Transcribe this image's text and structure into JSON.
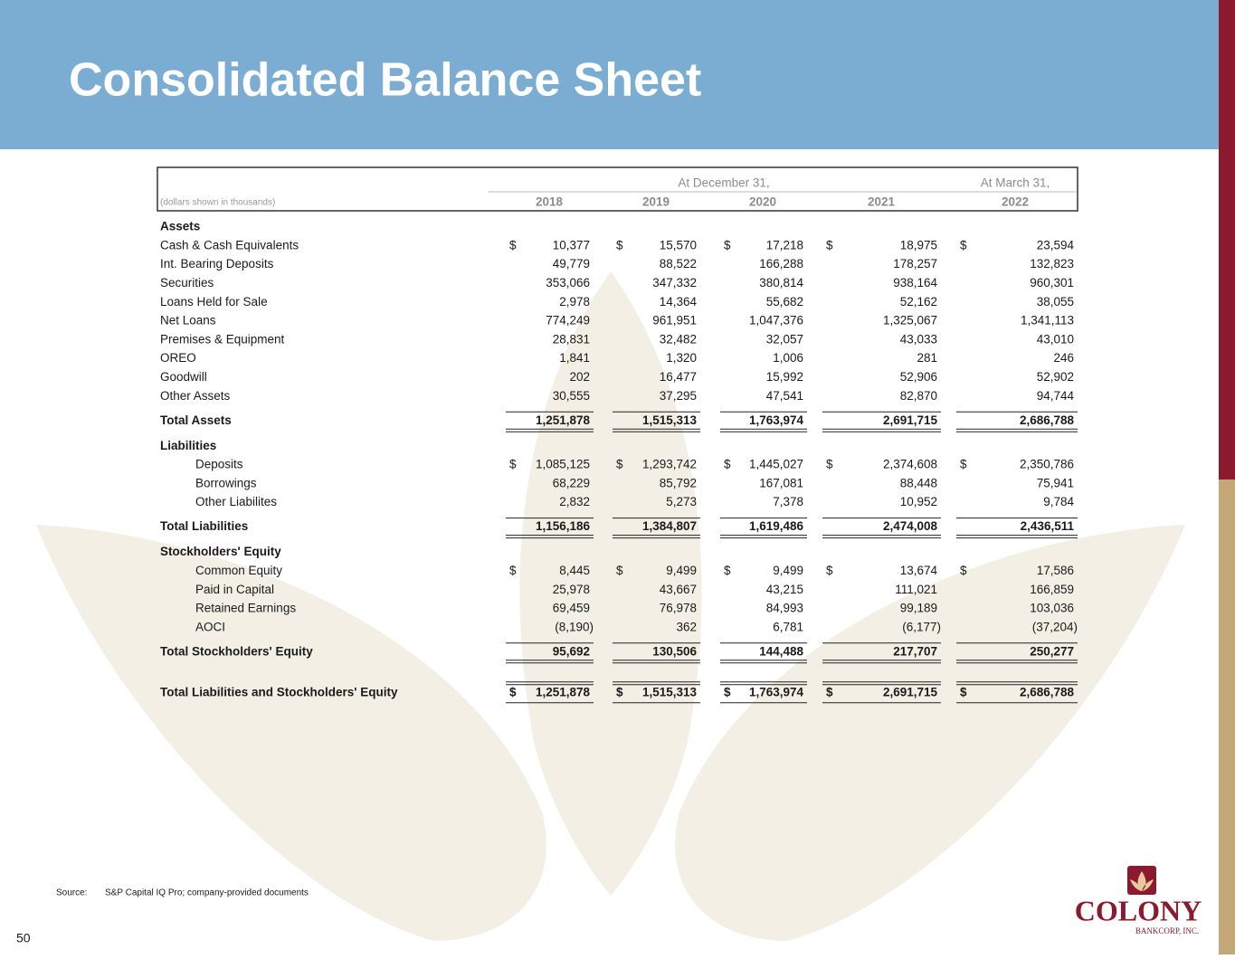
{
  "header": {
    "title": "Consolidated Balance Sheet"
  },
  "table": {
    "group_headers": [
      "At December 31,",
      "At March 31,"
    ],
    "note": "(dollars shown in thousands)",
    "years": [
      "2018",
      "2019",
      "2020",
      "2021",
      "2022"
    ],
    "currency": "$",
    "sections": [
      {
        "heading": "Assets",
        "indented_rows": false,
        "rows": [
          {
            "label": "Cash & Cash Equivalents",
            "values": [
              "10,377",
              "15,570",
              "17,218",
              "18,975",
              "23,594"
            ],
            "dollar_sign": true
          },
          {
            "label": "Int. Bearing Deposits",
            "values": [
              "49,779",
              "88,522",
              "166,288",
              "178,257",
              "132,823"
            ]
          },
          {
            "label": "Securities",
            "values": [
              "353,066",
              "347,332",
              "380,814",
              "938,164",
              "960,301"
            ]
          },
          {
            "label": "Loans Held for Sale",
            "values": [
              "2,978",
              "14,364",
              "55,682",
              "52,162",
              "38,055"
            ]
          },
          {
            "label": "Net Loans",
            "values": [
              "774,249",
              "961,951",
              "1,047,376",
              "1,325,067",
              "1,341,113"
            ]
          },
          {
            "label": "Premises & Equipment",
            "values": [
              "28,831",
              "32,482",
              "32,057",
              "43,033",
              "43,010"
            ]
          },
          {
            "label": "OREO",
            "values": [
              "1,841",
              "1,320",
              "1,006",
              "281",
              "246"
            ]
          },
          {
            "label": "Goodwill",
            "values": [
              "202",
              "16,477",
              "15,992",
              "52,906",
              "52,902"
            ]
          },
          {
            "label": "Other Assets",
            "values": [
              "30,555",
              "37,295",
              "47,541",
              "82,870",
              "94,744"
            ]
          }
        ],
        "total": {
          "label": "Total Assets",
          "values": [
            "1,251,878",
            "1,515,313",
            "1,763,974",
            "2,691,715",
            "2,686,788"
          ]
        }
      },
      {
        "heading": "Liabilities",
        "indented_rows": true,
        "rows": [
          {
            "label": "Deposits",
            "values": [
              "1,085,125",
              "1,293,742",
              "1,445,027",
              "2,374,608",
              "2,350,786"
            ],
            "dollar_sign": true
          },
          {
            "label": "Borrowings",
            "values": [
              "68,229",
              "85,792",
              "167,081",
              "88,448",
              "75,941"
            ]
          },
          {
            "label": "Other Liabilites",
            "values": [
              "2,832",
              "5,273",
              "7,378",
              "10,952",
              "9,784"
            ]
          }
        ],
        "total": {
          "label": "Total Liabilities",
          "values": [
            "1,156,186",
            "1,384,807",
            "1,619,486",
            "2,474,008",
            "2,436,511"
          ]
        }
      },
      {
        "heading": "Stockholders' Equity",
        "indented_rows": true,
        "rows": [
          {
            "label": "Common Equity",
            "values": [
              "8,445",
              "9,499",
              "9,499",
              "13,674",
              "17,586"
            ],
            "dollar_sign": true
          },
          {
            "label": "Paid in Capital",
            "values": [
              "25,978",
              "43,667",
              "43,215",
              "111,021",
              "166,859"
            ]
          },
          {
            "label": "Retained Earnings",
            "values": [
              "69,459",
              "76,978",
              "84,993",
              "99,189",
              "103,036"
            ]
          },
          {
            "label": "AOCI",
            "values": [
              "(8,190)",
              "362",
              "6,781",
              "(6,177)",
              "(37,204)"
            ]
          }
        ],
        "total": {
          "label": "Total Stockholders' Equity",
          "values": [
            "95,692",
            "130,506",
            "144,488",
            "217,707",
            "250,277"
          ]
        }
      }
    ],
    "grand_total": {
      "label": "Total Liabilities and Stockholders' Equity",
      "values": [
        "1,251,878",
        "1,515,313",
        "1,763,974",
        "2,691,715",
        "2,686,788"
      ],
      "dollar_sign": true
    }
  },
  "footer": {
    "source_label": "Source:",
    "source": "S&P Capital IQ Pro; company-provided documents",
    "page": "50"
  },
  "logo": {
    "name": "COLONY",
    "subtitle": "BANKCORP, INC."
  }
}
